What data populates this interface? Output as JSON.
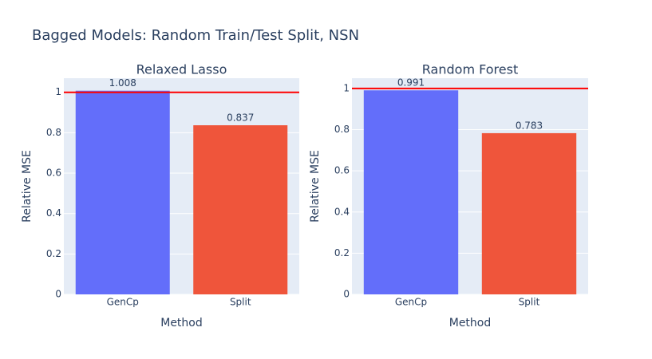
{
  "title": "Bagged Models: Random Train/Test Split, NSN",
  "chart_data": [
    {
      "type": "bar",
      "title": "Relaxed Lasso",
      "x_label": "Method",
      "y_label": "Relative MSE",
      "categories": [
        "GenCp",
        "Split"
      ],
      "values": [
        1.008,
        0.837
      ],
      "colors": [
        "#636efa",
        "#ef553b"
      ],
      "ylim": [
        0,
        1.07
      ],
      "yticks": [
        0,
        0.2,
        0.4,
        0.6,
        0.8,
        1
      ],
      "grid": true,
      "hline": {
        "value": 1,
        "color": "#ff0000"
      }
    },
    {
      "type": "bar",
      "title": "Random Forest",
      "x_label": "Method",
      "y_label": "Relative MSE",
      "categories": [
        "GenCp",
        "Split"
      ],
      "values": [
        0.991,
        0.783
      ],
      "colors": [
        "#636efa",
        "#ef553b"
      ],
      "ylim": [
        0,
        1.05
      ],
      "yticks": [
        0,
        0.2,
        0.4,
        0.6,
        0.8,
        1
      ],
      "grid": true,
      "hline": {
        "value": 1,
        "color": "#ff0000"
      }
    }
  ]
}
